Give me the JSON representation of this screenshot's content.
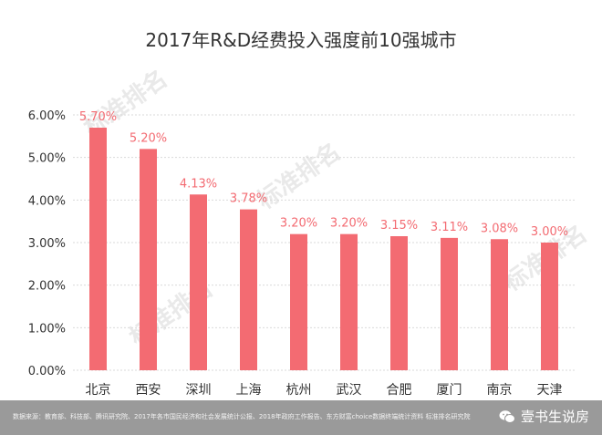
{
  "chart_data": {
    "type": "bar",
    "title": "2017年R&D经费投入强度前10强城市",
    "categories": [
      "北京",
      "西安",
      "深圳",
      "上海",
      "杭州",
      "武汉",
      "合肥",
      "厦门",
      "南京",
      "天津"
    ],
    "values": [
      5.7,
      5.2,
      4.13,
      3.78,
      3.2,
      3.2,
      3.15,
      3.11,
      3.08,
      3.0
    ],
    "data_labels": [
      "5.70%",
      "5.20%",
      "4.13%",
      "3.78%",
      "3.20%",
      "3.20%",
      "3.15%",
      "3.11%",
      "3.08%",
      "3.00%"
    ],
    "y_ticks": [
      "0.00%",
      "1.00%",
      "2.00%",
      "3.00%",
      "4.00%",
      "5.00%",
      "6.00%"
    ],
    "ylim": [
      0,
      6
    ],
    "grid": true,
    "xlabel": "",
    "ylabel": ""
  },
  "colors": {
    "bar": "#f36b72",
    "label": "#f36b72",
    "grid": "#d9d9d9",
    "footer": "#9a9a9a"
  },
  "watermark": "标准排名",
  "footer": {
    "source": "数据来源：教育部、科技部、腾讯研究院、2017年各市国民经济和社会发展统计公报、2018年政府工作报告、东方财富choice数据终端统计资料   标准排名研究院",
    "brand": "壹书生说房",
    "brand_icon": "wechat-icon"
  }
}
